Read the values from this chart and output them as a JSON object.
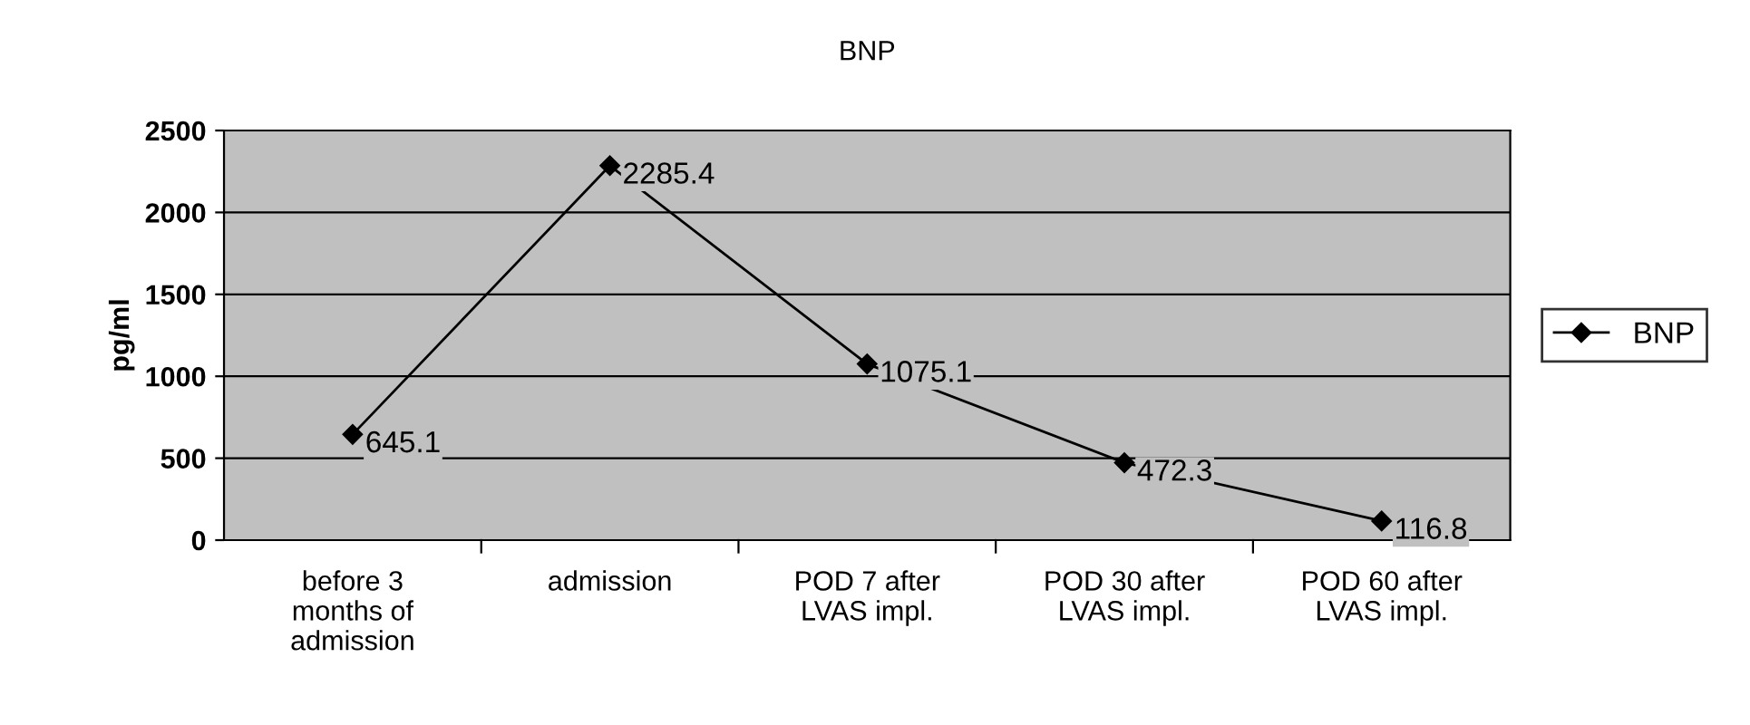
{
  "chart_data": {
    "type": "line",
    "title": "BNP",
    "ylabel": "pg/ml",
    "categories": [
      "before 3\nmonths of\nadmission",
      "admission",
      "POD 7 after\nLVAS impl.",
      "POD 30 after\nLVAS impl.",
      "POD 60 after\nLVAS impl."
    ],
    "series": [
      {
        "name": "BNP",
        "color": "#000000",
        "values": [
          645.1,
          2285.4,
          1075.1,
          472.3,
          116.8
        ]
      }
    ],
    "ylim": [
      0,
      2500
    ],
    "yticks": [
      0,
      500,
      1000,
      1500,
      2000,
      2500
    ],
    "grid": "y",
    "legend": "right",
    "marker": "diamond",
    "line_style": "solid",
    "data_labels": true
  }
}
